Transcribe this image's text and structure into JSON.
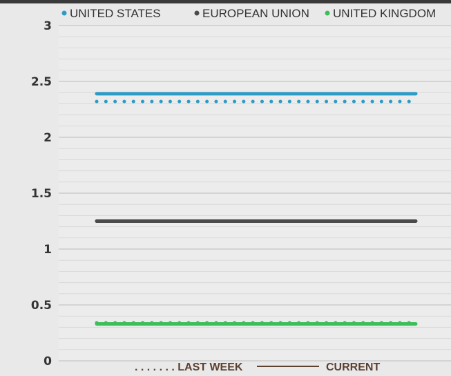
{
  "chart_data": {
    "type": "line",
    "title": "",
    "xlabel": "",
    "ylabel": "",
    "ylim": [
      0,
      3
    ],
    "yticks": [
      "3",
      "2.5",
      "2",
      "1.5",
      "1",
      "0.5",
      "0"
    ],
    "grid": true,
    "legend_position": "top",
    "series": [
      {
        "name": "UNITED STATES",
        "color": "#2e9bc4",
        "current": 2.39,
        "last_week": 2.32
      },
      {
        "name": "EUROPEAN UNION",
        "color": "#4a4a4a",
        "current": 1.25,
        "last_week": 1.25
      },
      {
        "name": "UNITED KINGDOM",
        "color": "#3cbf5a",
        "current": 0.33,
        "last_week": 0.34
      }
    ],
    "line_styles": {
      "last_week": {
        "label": ". . . . . . . LAST WEEK",
        "style": "dotted"
      },
      "current": {
        "label": "CURRENT",
        "style": "solid"
      }
    },
    "footer_color": "#5c4030"
  }
}
